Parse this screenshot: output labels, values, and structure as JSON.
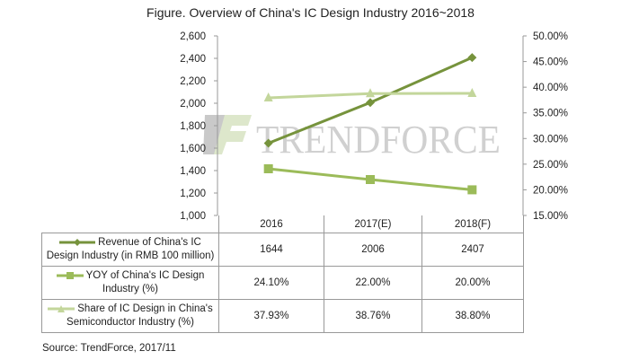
{
  "chart_data": {
    "type": "line",
    "title": "Figure. Overview of China's IC Design Industry 2016~2018",
    "categories": [
      "2016",
      "2017(E)",
      "2018(F)"
    ],
    "y_left": {
      "range": [
        1000,
        2600
      ],
      "ticks": [
        "1,000",
        "1,200",
        "1,400",
        "1,600",
        "1,800",
        "2,000",
        "2,200",
        "2,400",
        "2,600"
      ]
    },
    "y_right": {
      "range": [
        15,
        50
      ],
      "ticks": [
        "15.00%",
        "20.00%",
        "25.00%",
        "30.00%",
        "35.00%",
        "40.00%",
        "45.00%",
        "50.00%"
      ]
    },
    "grid": false,
    "legend": "table-left",
    "series": [
      {
        "name": "Revenue of China's IC Design Industry  (in RMB 100 million)",
        "axis": "left",
        "marker": "diamond",
        "color": "#76933c",
        "values": [
          1644,
          2006,
          2407
        ],
        "labels": [
          "1644",
          "2006",
          "2407"
        ]
      },
      {
        "name": "YOY of China's IC Design Industry (%)",
        "axis": "right",
        "marker": "square",
        "color": "#9bbb59",
        "values": [
          24.1,
          22.0,
          20.0
        ],
        "labels": [
          "24.10%",
          "22.00%",
          "20.00%"
        ]
      },
      {
        "name": "Share of IC Design in China's Semiconductor Industry (%)",
        "axis": "right",
        "marker": "triangle",
        "color": "#c3d69b",
        "values": [
          37.93,
          38.76,
          38.8
        ],
        "labels": [
          "37.93%",
          "38.76%",
          "38.80%"
        ]
      }
    ]
  },
  "watermark": "TRENDFORCE",
  "source": "Source: TrendForce, 2017/11"
}
